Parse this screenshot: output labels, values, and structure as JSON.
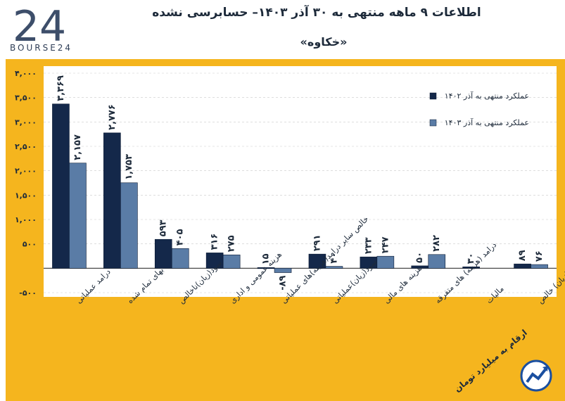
{
  "header": {
    "title": "اطلاعات ۹ ماهه منتهی به ۳۰ آذر ۱۴۰۳– حسابرسی نشده",
    "subtitle": "«خکاوه»",
    "brand": "BOURSE24",
    "logo_mark": "24"
  },
  "footer": {
    "note": "ارقام به میلیارد تومان"
  },
  "colors": {
    "frame": "#f5b51e",
    "plot_bg": "#ffffff",
    "series1": "#14284a",
    "series2": "#5a7ca6",
    "text": "#1d2a3a"
  },
  "chart_data": {
    "type": "bar",
    "title": "",
    "ylim": [
      -500,
      4000
    ],
    "yticks": [
      -500,
      0,
      500,
      1000,
      1500,
      2000,
      2500,
      3000,
      3500,
      4000
    ],
    "ytick_labels": [
      "-۵۰۰",
      "",
      "۵۰۰",
      "۱,۰۰۰",
      "۱,۵۰۰",
      "۲,۰۰۰",
      "۲,۵۰۰",
      "۳,۰۰۰",
      "۳,۵۰۰",
      "۴,۰۰۰"
    ],
    "categories": [
      "درامد عملیاتی",
      "بهای تمام شده",
      "سود(زیان)ناخالص",
      "هزینه عمومی و اداری",
      "خالص سایر درامد(هزینه)های عملیاتی",
      "سود(زیان)عملیاتی",
      "هزینه های مالی",
      "درامد (هزینه) های متفرقه",
      "مالیات",
      "سود(زیان) خالص"
    ],
    "series": [
      {
        "name": "عملکرد منتهی به آذر ۱۴۰۲",
        "values": [
          3369,
          2776,
          593,
          316,
          15,
          291,
          233,
          50,
          30,
          89
        ],
        "labels": [
          "۳,۳۶۹",
          "۲,۷۷۶",
          "۵۹۳",
          "۳۱۶",
          "۱۵",
          "۲۹۱",
          "۲۳۳",
          "۵۰",
          "۳۰",
          "۸۹"
        ]
      },
      {
        "name": "عملکرد منتهی به آذر ۱۴۰۳",
        "values": [
          2157,
          1753,
          405,
          275,
          -89,
          40,
          247,
          282,
          null,
          76
        ],
        "labels": [
          "۲,۱۵۷",
          "۱,۷۵۳",
          "۴۰۵",
          "۲۷۵",
          "-۸۹",
          "۴۰",
          "۲۴۷",
          "۲۸۲",
          "",
          "۷۶"
        ]
      }
    ],
    "legend": "top-right"
  }
}
